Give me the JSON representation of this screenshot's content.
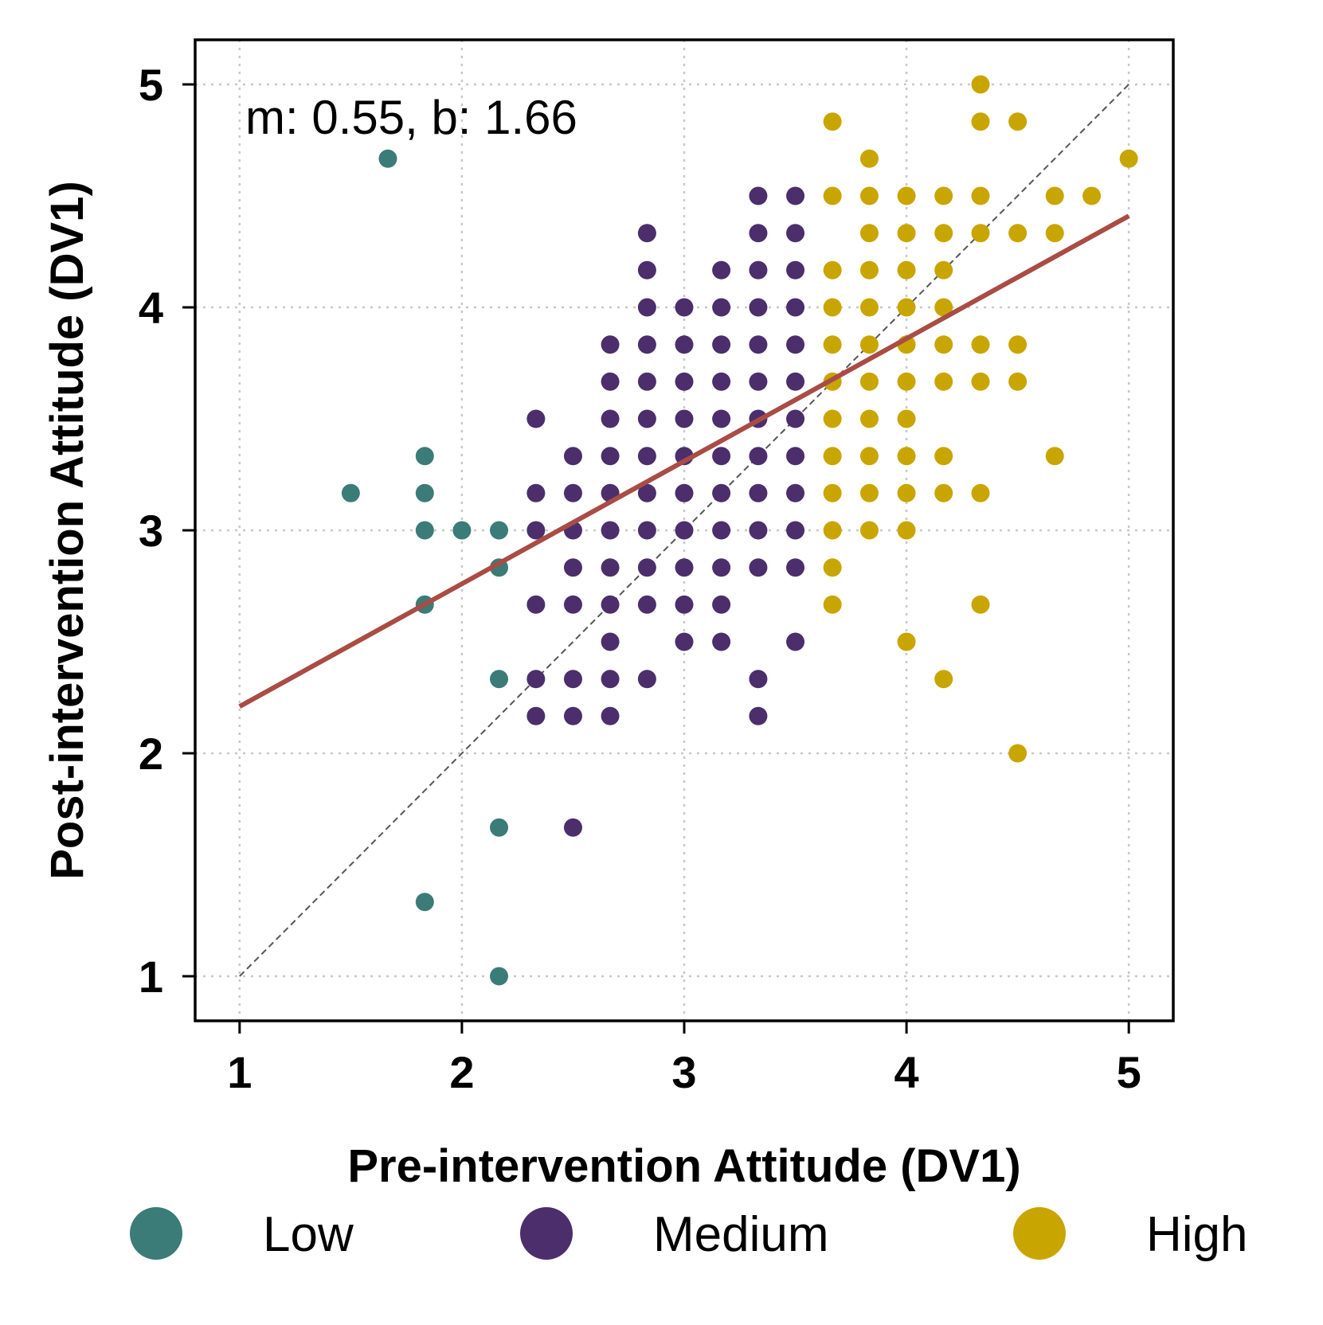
{
  "chart_data": {
    "type": "scatter",
    "title": "",
    "xlabel": "Pre-intervention Attitude (DV1)",
    "ylabel": "Post-intervention Attitude (DV1)",
    "xlim": [
      0.8,
      5.2
    ],
    "ylim": [
      0.8,
      5.2
    ],
    "xticks": [
      1,
      2,
      3,
      4,
      5
    ],
    "yticks": [
      1,
      2,
      3,
      4,
      5
    ],
    "x_tick_labels": [
      "1",
      "2",
      "3",
      "4",
      "5"
    ],
    "y_tick_labels": [
      "1",
      "2",
      "3",
      "4",
      "5"
    ],
    "grid": true,
    "annotation": "m: 0.55, b: 1.66",
    "regression": {
      "slope": 0.55,
      "intercept": 1.66,
      "x_range": [
        1,
        5
      ],
      "color": "#a94c45"
    },
    "identity_line": {
      "x_range": [
        1,
        5
      ],
      "color": "#555555"
    },
    "legend_position": "bottom",
    "series": [
      {
        "name": "Low",
        "color": "#3b7b78",
        "points": [
          [
            1.667,
            4.667
          ],
          [
            1.5,
            3.167
          ],
          [
            1.833,
            3.333
          ],
          [
            1.833,
            3.167
          ],
          [
            1.833,
            3.0
          ],
          [
            2.0,
            3.0
          ],
          [
            2.167,
            3.0
          ],
          [
            2.167,
            2.833
          ],
          [
            1.833,
            2.667
          ],
          [
            2.167,
            2.333
          ],
          [
            2.167,
            1.667
          ],
          [
            1.833,
            1.333
          ],
          [
            2.167,
            1.0
          ]
        ]
      },
      {
        "name": "Medium",
        "color": "#4b2e6b",
        "points": [
          [
            3.333,
            4.5
          ],
          [
            3.5,
            4.5
          ],
          [
            2.833,
            4.333
          ],
          [
            3.333,
            4.333
          ],
          [
            3.5,
            4.333
          ],
          [
            2.833,
            4.167
          ],
          [
            3.167,
            4.167
          ],
          [
            3.333,
            4.167
          ],
          [
            3.5,
            4.167
          ],
          [
            2.833,
            4.0
          ],
          [
            3.0,
            4.0
          ],
          [
            3.167,
            4.0
          ],
          [
            3.333,
            4.0
          ],
          [
            3.5,
            4.0
          ],
          [
            2.667,
            3.833
          ],
          [
            2.833,
            3.833
          ],
          [
            3.0,
            3.833
          ],
          [
            3.167,
            3.833
          ],
          [
            3.333,
            3.833
          ],
          [
            3.5,
            3.833
          ],
          [
            2.667,
            3.667
          ],
          [
            2.833,
            3.667
          ],
          [
            3.0,
            3.667
          ],
          [
            3.167,
            3.667
          ],
          [
            3.333,
            3.667
          ],
          [
            3.5,
            3.667
          ],
          [
            2.333,
            3.5
          ],
          [
            2.667,
            3.5
          ],
          [
            2.833,
            3.5
          ],
          [
            3.0,
            3.5
          ],
          [
            3.167,
            3.5
          ],
          [
            3.333,
            3.5
          ],
          [
            3.5,
            3.5
          ],
          [
            2.5,
            3.333
          ],
          [
            2.667,
            3.333
          ],
          [
            2.833,
            3.333
          ],
          [
            3.0,
            3.333
          ],
          [
            3.167,
            3.333
          ],
          [
            3.333,
            3.333
          ],
          [
            3.5,
            3.333
          ],
          [
            2.333,
            3.167
          ],
          [
            2.5,
            3.167
          ],
          [
            2.667,
            3.167
          ],
          [
            2.833,
            3.167
          ],
          [
            3.0,
            3.167
          ],
          [
            3.167,
            3.167
          ],
          [
            3.333,
            3.167
          ],
          [
            3.5,
            3.167
          ],
          [
            2.333,
            3.0
          ],
          [
            2.5,
            3.0
          ],
          [
            2.667,
            3.0
          ],
          [
            2.833,
            3.0
          ],
          [
            3.0,
            3.0
          ],
          [
            3.167,
            3.0
          ],
          [
            3.333,
            3.0
          ],
          [
            3.5,
            3.0
          ],
          [
            2.5,
            2.833
          ],
          [
            2.667,
            2.833
          ],
          [
            2.833,
            2.833
          ],
          [
            3.0,
            2.833
          ],
          [
            3.167,
            2.833
          ],
          [
            3.333,
            2.833
          ],
          [
            3.5,
            2.833
          ],
          [
            2.333,
            2.667
          ],
          [
            2.5,
            2.667
          ],
          [
            2.667,
            2.667
          ],
          [
            2.833,
            2.667
          ],
          [
            3.0,
            2.667
          ],
          [
            3.167,
            2.667
          ],
          [
            2.667,
            2.5
          ],
          [
            3.0,
            2.5
          ],
          [
            3.167,
            2.5
          ],
          [
            3.5,
            2.5
          ],
          [
            2.333,
            2.333
          ],
          [
            2.5,
            2.333
          ],
          [
            2.667,
            2.333
          ],
          [
            2.833,
            2.333
          ],
          [
            3.333,
            2.333
          ],
          [
            2.333,
            2.167
          ],
          [
            2.5,
            2.167
          ],
          [
            2.667,
            2.167
          ],
          [
            3.333,
            2.167
          ],
          [
            2.5,
            1.667
          ]
        ]
      },
      {
        "name": "High",
        "color": "#c9a500",
        "points": [
          [
            4.333,
            5.0
          ],
          [
            3.667,
            4.833
          ],
          [
            4.333,
            4.833
          ],
          [
            4.5,
            4.833
          ],
          [
            3.833,
            4.667
          ],
          [
            5.0,
            4.667
          ],
          [
            3.667,
            4.5
          ],
          [
            3.833,
            4.5
          ],
          [
            4.0,
            4.5
          ],
          [
            4.167,
            4.5
          ],
          [
            4.333,
            4.5
          ],
          [
            4.667,
            4.5
          ],
          [
            4.833,
            4.5
          ],
          [
            3.833,
            4.333
          ],
          [
            4.0,
            4.333
          ],
          [
            4.167,
            4.333
          ],
          [
            4.333,
            4.333
          ],
          [
            4.5,
            4.333
          ],
          [
            4.667,
            4.333
          ],
          [
            3.667,
            4.167
          ],
          [
            3.833,
            4.167
          ],
          [
            4.0,
            4.167
          ],
          [
            4.167,
            4.167
          ],
          [
            3.667,
            4.0
          ],
          [
            3.833,
            4.0
          ],
          [
            4.0,
            4.0
          ],
          [
            4.167,
            4.0
          ],
          [
            3.667,
            3.833
          ],
          [
            3.833,
            3.833
          ],
          [
            4.0,
            3.833
          ],
          [
            4.167,
            3.833
          ],
          [
            4.333,
            3.833
          ],
          [
            4.5,
            3.833
          ],
          [
            3.667,
            3.667
          ],
          [
            3.833,
            3.667
          ],
          [
            4.0,
            3.667
          ],
          [
            4.167,
            3.667
          ],
          [
            4.333,
            3.667
          ],
          [
            4.5,
            3.667
          ],
          [
            3.667,
            3.5
          ],
          [
            3.833,
            3.5
          ],
          [
            4.0,
            3.5
          ],
          [
            3.667,
            3.333
          ],
          [
            3.833,
            3.333
          ],
          [
            4.0,
            3.333
          ],
          [
            4.167,
            3.333
          ],
          [
            4.667,
            3.333
          ],
          [
            3.667,
            3.167
          ],
          [
            3.833,
            3.167
          ],
          [
            4.0,
            3.167
          ],
          [
            4.167,
            3.167
          ],
          [
            4.333,
            3.167
          ],
          [
            3.667,
            3.0
          ],
          [
            3.833,
            3.0
          ],
          [
            4.0,
            3.0
          ],
          [
            3.667,
            2.833
          ],
          [
            3.667,
            2.667
          ],
          [
            4.333,
            2.667
          ],
          [
            4.0,
            2.5
          ],
          [
            4.167,
            2.333
          ],
          [
            4.5,
            2.0
          ]
        ]
      }
    ]
  }
}
